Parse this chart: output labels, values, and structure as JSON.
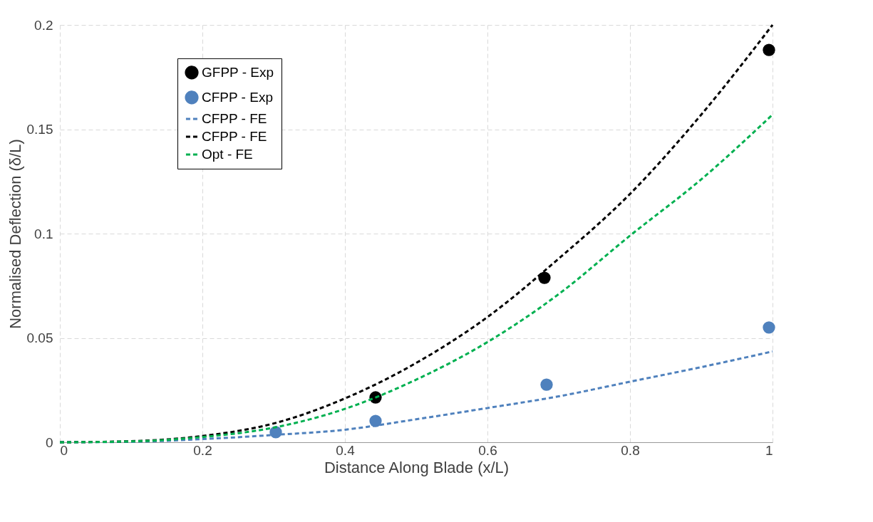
{
  "chart_data": {
    "type": "scatter",
    "xlabel": "Distance Along Blade (x/L)",
    "ylabel": "Normalised Deflection (δ/L)",
    "xlim": [
      0,
      1
    ],
    "xticks": [
      0,
      0.2,
      0.4,
      0.6,
      0.8,
      1
    ],
    "ylim": [
      0,
      0.2
    ],
    "yticks": [
      0,
      0.05,
      0.1,
      0.15,
      0.2
    ],
    "grid": true,
    "legend": "top left",
    "marker": "circle",
    "series": [
      {
        "name": "GFPP - Exp",
        "color": "#000000",
        "x": [
          0.443,
          0.68,
          0.995
        ],
        "values": [
          0.0215,
          0.0788,
          0.188
        ]
      },
      {
        "name": "CFPP - Exp",
        "color": "#4f81bd",
        "x": [
          0.303,
          0.443,
          0.683,
          0.995
        ],
        "values": [
          0.0048,
          0.0102,
          0.0276,
          0.055
        ]
      },
      {
        "name": "CFPP - FE",
        "type": "line",
        "marker": "none",
        "line_style": "dashed",
        "color": "#4f81bd",
        "x": [
          0,
          0.1,
          0.2,
          0.3,
          0.4,
          0.5,
          0.6,
          0.7,
          0.8,
          0.9,
          1
        ],
        "values": [
          0,
          0.0002,
          0.0015,
          0.0035,
          0.006,
          0.011,
          0.0164,
          0.022,
          0.029,
          0.036,
          0.0435
        ]
      },
      {
        "name": "CFPP - FE",
        "type": "line",
        "marker": "none",
        "line_style": "dashed",
        "color": "#000000",
        "x": [
          0,
          0.1,
          0.2,
          0.3,
          0.4,
          0.5,
          0.6,
          0.7,
          0.8,
          0.9,
          1
        ],
        "values": [
          0,
          0.0005,
          0.003,
          0.009,
          0.021,
          0.038,
          0.06,
          0.088,
          0.119,
          0.157,
          0.2
        ]
      },
      {
        "name": "Opt - FE",
        "type": "line",
        "marker": "none",
        "line_style": "dashed",
        "color": "#00b050",
        "x": [
          0,
          0.1,
          0.2,
          0.3,
          0.4,
          0.5,
          0.6,
          0.7,
          0.8,
          0.9,
          1
        ],
        "values": [
          0,
          0.0004,
          0.0025,
          0.007,
          0.016,
          0.03,
          0.048,
          0.071,
          0.099,
          0.126,
          0.157
        ]
      }
    ]
  }
}
